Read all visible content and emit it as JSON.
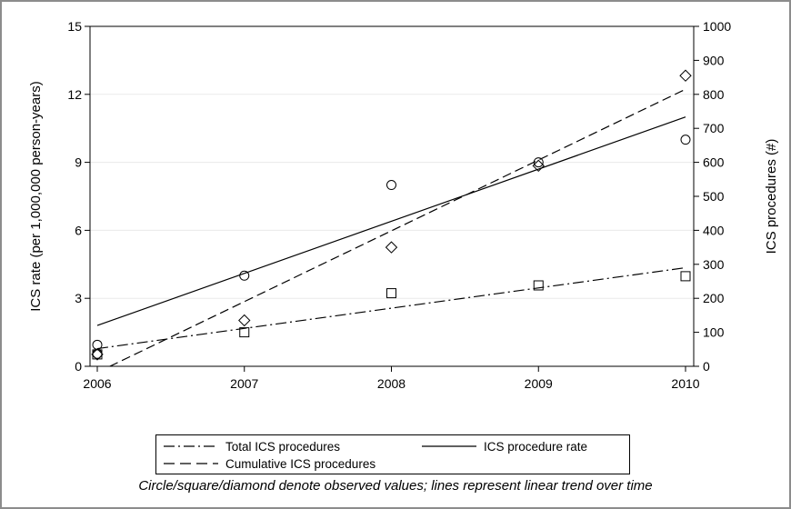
{
  "chart_data": {
    "type": "scatter",
    "title": "",
    "xlabel": "",
    "ylabel": "ICS rate (per 1,000,000 person-years)",
    "y2label": "ICS procedures (#)",
    "x": [
      2006,
      2007,
      2008,
      2009,
      2010
    ],
    "xlim": [
      2006,
      2010
    ],
    "ylim": [
      0,
      15
    ],
    "y2lim": [
      0,
      1000
    ],
    "xticks": [
      "2006",
      "2007",
      "2008",
      "2009",
      "2010"
    ],
    "yticks": [
      "0",
      "3",
      "6",
      "9",
      "12",
      "15"
    ],
    "y2ticks": [
      "0",
      "100",
      "200",
      "300",
      "400",
      "500",
      "600",
      "700",
      "800",
      "900",
      "1000"
    ],
    "grid": "horizontal",
    "series": [
      {
        "name": "Total ICS procedures",
        "axis": "right",
        "marker": "square",
        "line": "dash-dot",
        "values": [
          35,
          100,
          215,
          238,
          265
        ],
        "trend": [
          52,
          290
        ]
      },
      {
        "name": "ICS procedure rate",
        "axis": "left",
        "marker": "circle",
        "line": "solid",
        "values": [
          0.95,
          4.0,
          8.0,
          9.0,
          10.0
        ],
        "values_extra": [
          {
            "x": 2006,
            "y": 0.55
          }
        ],
        "trend": [
          1.8,
          11.0
        ]
      },
      {
        "name": "Cumulative ICS procedures",
        "axis": "right",
        "marker": "diamond",
        "line": "dashed",
        "values": [
          35,
          135,
          350,
          590,
          855
        ],
        "trend": [
          -18,
          815
        ]
      }
    ]
  },
  "legend": {
    "total": "Total ICS procedures",
    "rate": "ICS procedure rate",
    "cumulative": "Cumulative ICS procedures"
  },
  "note": "Circle/square/diamond denote observed values; lines represent linear trend over time"
}
